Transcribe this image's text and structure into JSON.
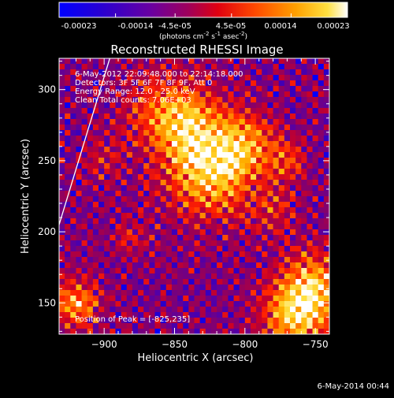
{
  "colorbar": {
    "tick_labels": [
      "-0.00023",
      "-0.00014",
      "-4.5e-05",
      "4.5e-05",
      "0.00014",
      "0.00023"
    ],
    "units_prefix": "(photons cm",
    "units_exp1": "-2",
    "units_mid": " s",
    "units_exp2": "-1",
    "units_mid2": " asec",
    "units_exp3": "-2",
    "units_suffix": ")",
    "range": [
      -0.00023,
      0.00023
    ],
    "colors": [
      "#0000ff",
      "#2a00c8",
      "#5a00a0",
      "#8c0064",
      "#c80028",
      "#ff2000",
      "#ff6a00",
      "#ffb000",
      "#ffe040",
      "#ffffff"
    ]
  },
  "chart_data": {
    "type": "heatmap",
    "title": "Reconstructed RHESSI Image",
    "xlabel": "Heliocentric X (arcsec)",
    "ylabel": "Heliocentric Y (arcsec)",
    "xlim": [
      -932,
      -740
    ],
    "ylim": [
      128,
      322
    ],
    "x_ticks": [
      -900,
      -850,
      -800,
      -750
    ],
    "x_tick_labels": [
      "−900",
      "−850",
      "−800",
      "−750"
    ],
    "y_ticks": [
      150,
      200,
      250,
      300
    ],
    "y_tick_labels": [
      "150",
      "200",
      "250",
      "300"
    ],
    "annotations": [
      "6-May-2012 22:09:48.000 to 22:14:18.000",
      "Detectors: 3F 5F 6F 7F 8F 9F, Att 0",
      "Energy Range: 12.0 - 25.0 keV",
      "Clean     Total counts: 7.06E+03"
    ],
    "peak_label": "Position of Peak = [-825,235]",
    "peak": [
      -825,
      235
    ],
    "limb_line": [
      [
        -932,
        205
      ],
      [
        -896,
        322
      ]
    ],
    "grid": false
  },
  "footer": {
    "date": "6-May-2014 00:44"
  }
}
